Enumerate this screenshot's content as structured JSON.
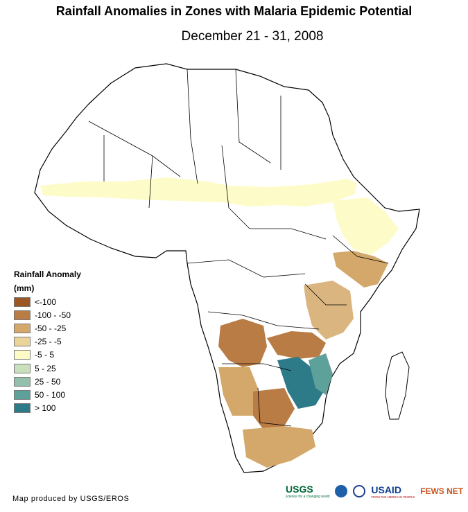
{
  "title": "Rainfall Anomalies in Zones with Malaria Epidemic Potential",
  "subtitle": "December 21 - 31, 2008",
  "legend": {
    "title_line1": "Rainfall Anomaly",
    "title_line2": "(mm)",
    "classes": [
      {
        "label": "<-100",
        "color": "#9a5724"
      },
      {
        "label": "-100 - -50",
        "color": "#b97c45"
      },
      {
        "label": "-50 - -25",
        "color": "#d3a86a"
      },
      {
        "label": "-25 - -5",
        "color": "#ead49a"
      },
      {
        "label": "-5 - 5",
        "color": "#fdfcc8"
      },
      {
        "label": "5 - 25",
        "color": "#c9e0bd"
      },
      {
        "label": "25 - 50",
        "color": "#94bfac"
      },
      {
        "label": "50 - 100",
        "color": "#5ea09a"
      },
      {
        "label": "> 100",
        "color": "#2d7b88"
      }
    ]
  },
  "credit": "Map produced by USGS/EROS",
  "logos": {
    "usgs": "USGS",
    "usgs_tagline": "science for a changing world",
    "usaid": "USAID",
    "usaid_tagline": "FROM THE AMERICAN PEOPLE",
    "fewsnet": "FEWS NET"
  }
}
